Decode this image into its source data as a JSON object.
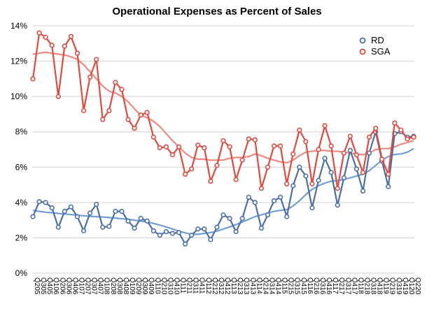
{
  "chart_data": {
    "type": "line",
    "title": "Operational Expenses as Percent of Sales",
    "xlabel": "",
    "ylabel": "",
    "ylim": [
      0,
      14
    ],
    "yticks": [
      "0%",
      "2%",
      "4%",
      "6%",
      "8%",
      "10%",
      "12%",
      "14%"
    ],
    "ytick_values": [
      0,
      2,
      4,
      6,
      8,
      10,
      12,
      14
    ],
    "grid": true,
    "legend_position": "top-right",
    "x": [
      "Q205",
      "Q305",
      "Q405",
      "Q106",
      "Q206",
      "Q306",
      "Q406",
      "Q107",
      "Q207",
      "Q307",
      "Q407",
      "Q108",
      "Q208",
      "Q308",
      "Q408",
      "Q109",
      "Q209",
      "Q309",
      "Q409",
      "Q110",
      "Q210",
      "Q310",
      "Q410",
      "Q111",
      "Q211",
      "Q311",
      "Q411",
      "Q112",
      "Q212",
      "Q312",
      "Q412",
      "Q113",
      "Q213",
      "Q313",
      "Q413",
      "Q114",
      "Q214",
      "Q314",
      "Q414",
      "Q115",
      "Q215",
      "Q315",
      "Q415",
      "Q116",
      "Q216",
      "Q316",
      "Q416",
      "Q117",
      "Q217",
      "Q317",
      "Q417",
      "Q118",
      "Q218",
      "Q318",
      "Q418",
      "Q119",
      "Q219",
      "Q319",
      "Q419",
      "Q120",
      "Q220"
    ],
    "series": [
      {
        "name": "RD",
        "color": "#4a6fa5",
        "values": [
          3.2,
          4.05,
          4.0,
          3.7,
          2.6,
          3.5,
          3.75,
          3.2,
          2.4,
          3.4,
          3.9,
          2.6,
          2.65,
          3.5,
          3.5,
          2.95,
          2.55,
          3.1,
          2.95,
          2.4,
          2.15,
          2.35,
          2.25,
          2.3,
          1.65,
          2.15,
          2.5,
          2.5,
          1.9,
          2.6,
          3.3,
          3.1,
          2.35,
          3.1,
          4.3,
          4.0,
          2.55,
          3.3,
          4.1,
          4.3,
          3.2,
          4.95,
          6.0,
          5.5,
          3.7,
          5.25,
          6.5,
          5.7,
          3.85,
          5.4,
          6.95,
          5.9,
          4.65,
          6.8,
          8.0,
          6.35,
          4.9,
          7.9,
          8.0,
          7.7,
          7.75
        ]
      },
      {
        "name": "SGA",
        "color": "#e0493e",
        "values": [
          11.0,
          13.6,
          13.35,
          12.9,
          10.0,
          12.85,
          13.4,
          12.45,
          9.2,
          11.1,
          12.1,
          8.7,
          9.2,
          10.8,
          10.4,
          8.7,
          8.2,
          8.95,
          9.1,
          7.7,
          7.1,
          7.15,
          6.7,
          7.15,
          5.6,
          5.9,
          7.25,
          7.1,
          5.2,
          6.1,
          7.5,
          7.15,
          5.3,
          6.4,
          7.6,
          7.55,
          4.8,
          6.0,
          7.2,
          7.2,
          5.05,
          6.75,
          8.1,
          7.45,
          5.05,
          7.0,
          8.35,
          7.2,
          4.8,
          6.8,
          7.75,
          6.7,
          5.7,
          7.7,
          8.2,
          6.45,
          5.6,
          8.5,
          8.1,
          7.6,
          7.7
        ]
      }
    ],
    "trend_series": [
      {
        "name": "RD",
        "color": "#6f9fd6",
        "values": [
          3.55,
          3.5,
          3.45,
          3.42,
          3.38,
          3.35,
          3.32,
          3.28,
          3.25,
          3.22,
          3.2,
          3.18,
          3.15,
          3.12,
          3.08,
          3.05,
          3.0,
          2.95,
          2.9,
          2.82,
          2.72,
          2.62,
          2.5,
          2.38,
          2.28,
          2.2,
          2.2,
          2.25,
          2.3,
          2.38,
          2.5,
          2.62,
          2.75,
          2.9,
          3.05,
          3.2,
          3.3,
          3.4,
          3.5,
          3.55,
          3.6,
          3.8,
          4.1,
          4.45,
          4.75,
          4.95,
          5.1,
          5.2,
          5.25,
          5.3,
          5.4,
          5.5,
          5.6,
          5.8,
          6.1,
          6.4,
          6.6,
          6.72,
          6.75,
          6.85,
          7.05
        ]
      },
      {
        "name": "SGA",
        "color": "#f08a80",
        "values": [
          12.4,
          12.45,
          12.5,
          12.45,
          12.4,
          12.35,
          12.25,
          12.1,
          11.8,
          11.4,
          11.0,
          10.6,
          10.3,
          10.2,
          10.0,
          9.7,
          9.3,
          8.95,
          8.8,
          8.6,
          8.3,
          7.9,
          7.5,
          7.15,
          6.8,
          6.55,
          6.45,
          6.45,
          6.4,
          6.4,
          6.4,
          6.5,
          6.55,
          6.55,
          6.6,
          6.75,
          6.65,
          6.5,
          6.4,
          6.3,
          6.25,
          6.4,
          6.65,
          6.85,
          6.9,
          6.95,
          6.95,
          6.9,
          6.9,
          6.85,
          6.8,
          6.75,
          6.7,
          6.8,
          7.0,
          7.05,
          7.05,
          7.15,
          7.3,
          7.4,
          7.5
        ]
      }
    ]
  }
}
